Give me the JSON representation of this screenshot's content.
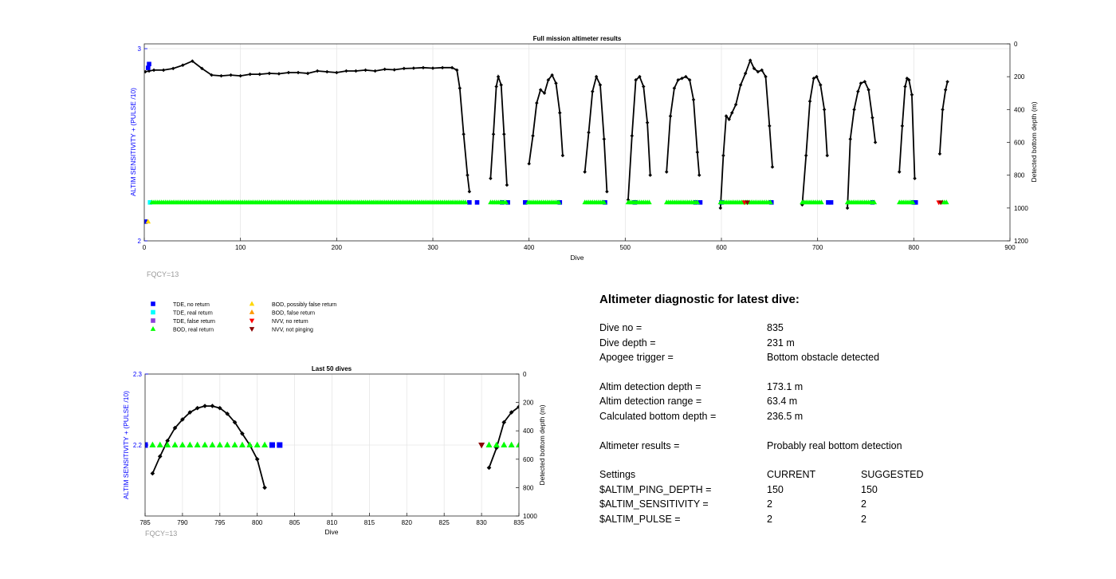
{
  "top_chart": {
    "title": "Full mission altimeter results",
    "xlabel": "Dive",
    "ylabel_left": "ALTIM SENSITIVITY + (PULSE /10)",
    "ylabel_right": "Detected bottom depth (m)",
    "footnote": "FQCY=13",
    "x_ticks": [
      "0",
      "100",
      "200",
      "300",
      "400",
      "500",
      "600",
      "700",
      "800",
      "900"
    ],
    "y_left_ticks": [
      "2",
      "3"
    ],
    "y_right_ticks": [
      "0",
      "200",
      "400",
      "600",
      "800",
      "1000",
      "1200"
    ]
  },
  "bottom_chart": {
    "title": "Last 50 dives",
    "xlabel": "Dive",
    "ylabel_left": "ALTIM SENSITIVITY + (PULSE /10)",
    "ylabel_right": "Detected bottom depth (m)",
    "footnote": "FQCY=13",
    "x_ticks": [
      "785",
      "790",
      "795",
      "800",
      "805",
      "810",
      "815",
      "820",
      "825",
      "830",
      "835"
    ],
    "y_left_ticks": [
      "2.2",
      "2.3"
    ],
    "y_right_ticks": [
      "0",
      "200",
      "400",
      "600",
      "800",
      "1000"
    ]
  },
  "legend": [
    {
      "label": "TDE, no return",
      "color": "#0000ff",
      "shape": "square"
    },
    {
      "label": "TDE, real return",
      "color": "#00ffff",
      "shape": "square"
    },
    {
      "label": "TDE, false return",
      "color": "#8b3fd9",
      "shape": "square"
    },
    {
      "label": "BOD, real return",
      "color": "#00ff00",
      "shape": "triangle-up"
    },
    {
      "label": "BOD, possibly false return",
      "color": "#ffd700",
      "shape": "triangle-up"
    },
    {
      "label": "BOD, false return",
      "color": "#ff9900",
      "shape": "triangle-up"
    },
    {
      "label": "NVV, no return",
      "color": "#ff0000",
      "shape": "triangle-down"
    },
    {
      "label": "NVV, not pinging",
      "color": "#8b0000",
      "shape": "triangle-down"
    }
  ],
  "chart_data": [
    {
      "type": "scatter",
      "title": "Full mission altimeter results",
      "xlabel": "Dive",
      "ylabel": "ALTIM SENSITIVITY + (PULSE /10)",
      "y2label": "Detected bottom depth (m)",
      "xlim": [
        0,
        900
      ],
      "ylim": [
        2,
        3.025
      ],
      "y2lim": [
        1200,
        0
      ],
      "grid": true,
      "series": [
        {
          "name": "Detected bottom depth",
          "axis": "right",
          "segments": [
            [
              [
                1,
                170
              ],
              [
                5,
                165
              ],
              [
                10,
                160
              ],
              [
                20,
                160
              ],
              [
                30,
                150
              ],
              [
                40,
                130
              ],
              [
                50,
                105
              ],
              [
                60,
                150
              ],
              [
                70,
                190
              ],
              [
                80,
                195
              ],
              [
                90,
                190
              ],
              [
                100,
                195
              ],
              [
                110,
                185
              ],
              [
                120,
                185
              ],
              [
                130,
                180
              ],
              [
                140,
                182
              ],
              [
                150,
                175
              ],
              [
                160,
                175
              ],
              [
                170,
                180
              ],
              [
                180,
                165
              ],
              [
                190,
                170
              ],
              [
                200,
                175
              ],
              [
                210,
                165
              ],
              [
                220,
                165
              ],
              [
                230,
                160
              ],
              [
                240,
                165
              ],
              [
                250,
                155
              ],
              [
                260,
                158
              ],
              [
                270,
                150
              ],
              [
                280,
                148
              ],
              [
                290,
                145
              ],
              [
                300,
                148
              ],
              [
                310,
                145
              ],
              [
                320,
                145
              ],
              [
                325,
                160
              ],
              [
                328,
                270
              ],
              [
                332,
                550
              ],
              [
                336,
                800
              ],
              [
                338,
                900
              ]
            ],
            [
              [
                360,
                820
              ],
              [
                363,
                550
              ],
              [
                366,
                260
              ],
              [
                368,
                200
              ],
              [
                371,
                250
              ],
              [
                374,
                550
              ],
              [
                377,
                860
              ]
            ],
            [
              [
                400,
                730
              ],
              [
                404,
                560
              ],
              [
                408,
                360
              ],
              [
                412,
                280
              ],
              [
                416,
                300
              ],
              [
                420,
                220
              ],
              [
                424,
                190
              ],
              [
                428,
                240
              ],
              [
                432,
                420
              ],
              [
                435,
                680
              ]
            ],
            [
              [
                458,
                780
              ],
              [
                462,
                540
              ],
              [
                466,
                290
              ],
              [
                470,
                200
              ],
              [
                474,
                250
              ],
              [
                478,
                580
              ],
              [
                481,
                900
              ]
            ],
            [
              [
                503,
                950
              ],
              [
                507,
                560
              ],
              [
                511,
                220
              ],
              [
                515,
                200
              ],
              [
                519,
                260
              ],
              [
                523,
                480
              ],
              [
                526,
                800
              ]
            ],
            [
              [
                543,
                780
              ],
              [
                547,
                440
              ],
              [
                551,
                270
              ],
              [
                555,
                220
              ],
              [
                559,
                210
              ],
              [
                563,
                200
              ],
              [
                567,
                220
              ],
              [
                571,
                340
              ],
              [
                575,
                660
              ],
              [
                577,
                800
              ]
            ],
            [
              [
                599,
                1000
              ],
              [
                602,
                680
              ],
              [
                605,
                440
              ],
              [
                608,
                460
              ],
              [
                611,
                420
              ],
              [
                615,
                370
              ],
              [
                620,
                250
              ],
              [
                625,
                180
              ],
              [
                630,
                100
              ],
              [
                634,
                150
              ],
              [
                638,
                170
              ],
              [
                642,
                160
              ],
              [
                646,
                200
              ],
              [
                650,
                500
              ],
              [
                653,
                750
              ]
            ],
            [
              [
                684,
                980
              ],
              [
                688,
                680
              ],
              [
                692,
                350
              ],
              [
                696,
                210
              ],
              [
                699,
                200
              ],
              [
                703,
                250
              ],
              [
                707,
                400
              ],
              [
                710,
                680
              ]
            ],
            [
              [
                731,
                1000
              ],
              [
                734,
                580
              ],
              [
                738,
                400
              ],
              [
                742,
                290
              ],
              [
                745,
                240
              ],
              [
                749,
                230
              ],
              [
                753,
                280
              ],
              [
                757,
                450
              ],
              [
                760,
                600
              ]
            ],
            [
              [
                785,
                780
              ],
              [
                788,
                500
              ],
              [
                791,
                260
              ],
              [
                793,
                210
              ],
              [
                795,
                220
              ],
              [
                798,
                310
              ],
              [
                801,
                820
              ]
            ],
            [
              [
                827,
                670
              ],
              [
                830,
                400
              ],
              [
                833,
                280
              ],
              [
                835,
                231
              ]
            ]
          ]
        },
        {
          "name": "TDE, no return",
          "axis": "left",
          "color": "#0000ff",
          "x": [
            1,
            4,
            5,
            338,
            346,
            372,
            378,
            396,
            432,
            479,
            510,
            573,
            578,
            600,
            652,
            711,
            714,
            757,
            800,
            802
          ],
          "y": [
            2.1,
            2.9,
            2.92,
            2.2,
            2.2,
            2.2,
            2.2,
            2.2,
            2.2,
            2.2,
            2.2,
            2.2,
            2.2,
            2.2,
            2.2,
            2.2,
            2.2,
            2.2,
            2.2,
            2.2
          ]
        },
        {
          "name": "TDE, real return",
          "axis": "left",
          "color": "#00ffff",
          "x": [
            6
          ],
          "y": [
            2.2
          ]
        },
        {
          "name": "BOD, real return",
          "axis": "left",
          "color": "#00ff00",
          "x_range": [
            [
              8,
              335
            ],
            [
              360,
              377
            ],
            [
              399,
              432
            ],
            [
              458,
              479
            ],
            [
              503,
              525
            ],
            [
              543,
              575
            ],
            [
              599,
              652
            ],
            [
              684,
              705
            ],
            [
              731,
              760
            ],
            [
              785,
              800
            ],
            [
              830,
              835
            ]
          ],
          "y": 2.2
        },
        {
          "name": "BOD, possibly false return",
          "axis": "left",
          "color": "#ffd700",
          "x": [
            4
          ],
          "y": [
            2.1
          ]
        },
        {
          "name": "NVV, no return",
          "axis": "left",
          "color": "#ff0000",
          "x": [
            624,
            826
          ],
          "y": [
            2.2,
            2.2
          ]
        },
        {
          "name": "NVV, not pinging",
          "axis": "left",
          "color": "#8b0000",
          "x": [
            627,
            828
          ],
          "y": [
            2.2,
            2.2
          ]
        }
      ]
    },
    {
      "type": "scatter",
      "title": "Last 50 dives",
      "xlabel": "Dive",
      "ylabel": "ALTIM SENSITIVITY + (PULSE /10)",
      "y2label": "Detected bottom depth (m)",
      "xlim": [
        785,
        835
      ],
      "ylim": [
        2.1,
        2.3
      ],
      "y2lim": [
        1000,
        0
      ],
      "grid": true,
      "series": [
        {
          "name": "Detected bottom depth",
          "axis": "right",
          "segments": [
            [
              [
                786,
                700
              ],
              [
                787,
                580
              ],
              [
                788,
                470
              ],
              [
                789,
                380
              ],
              [
                790,
                320
              ],
              [
                791,
                270
              ],
              [
                792,
                240
              ],
              [
                793,
                225
              ],
              [
                794,
                225
              ],
              [
                795,
                240
              ],
              [
                796,
                280
              ],
              [
                797,
                340
              ],
              [
                798,
                420
              ],
              [
                799,
                500
              ],
              [
                800,
                600
              ],
              [
                801,
                800
              ]
            ],
            [
              [
                831,
                660
              ],
              [
                832,
                520
              ],
              [
                833,
                340
              ],
              [
                834,
                270
              ],
              [
                835,
                231
              ]
            ]
          ]
        },
        {
          "name": "TDE, no return",
          "axis": "left",
          "color": "#0000ff",
          "x": [
            785,
            802,
            803
          ],
          "y": [
            2.2,
            2.2,
            2.2
          ]
        },
        {
          "name": "BOD, real return",
          "axis": "left",
          "color": "#00ff00",
          "x": [
            786,
            787,
            788,
            789,
            790,
            791,
            792,
            793,
            794,
            795,
            796,
            797,
            798,
            799,
            800,
            801,
            831,
            832,
            833,
            834,
            835
          ],
          "y": [
            2.2,
            2.2,
            2.2,
            2.2,
            2.2,
            2.2,
            2.2,
            2.2,
            2.2,
            2.2,
            2.2,
            2.2,
            2.2,
            2.2,
            2.2,
            2.2,
            2.2,
            2.2,
            2.2,
            2.2,
            2.2
          ]
        },
        {
          "name": "NVV, not pinging",
          "axis": "left",
          "color": "#8b0000",
          "x": [
            830
          ],
          "y": [
            2.2
          ]
        }
      ]
    }
  ],
  "diagnostic": {
    "title": "Altimeter diagnostic for latest dive:",
    "dive_no": {
      "label": "Dive no =",
      "value": "835"
    },
    "dive_depth": {
      "label": "Dive depth =",
      "value": "231 m"
    },
    "apogee_trigger": {
      "label": "Apogee trigger =",
      "value": "Bottom obstacle detected"
    },
    "altim_detection_depth": {
      "label": "Altim detection depth =",
      "value": "173.1 m"
    },
    "altim_detection_range": {
      "label": "Altim detection range =",
      "value": "63.4 m"
    },
    "calculated_bottom_depth": {
      "label": "Calculated bottom depth =",
      "value": "236.5 m"
    },
    "altimeter_results": {
      "label": "Altimeter results =",
      "value": "Probably real bottom detection"
    },
    "settings_header": {
      "label": "Settings",
      "current": "CURRENT",
      "suggested": "SUGGESTED"
    },
    "ping_depth": {
      "label": "$ALTIM_PING_DEPTH =",
      "current": "150",
      "suggested": "150"
    },
    "sensitivity": {
      "label": "$ALTIM_SENSITIVITY =",
      "current": "2",
      "suggested": "2"
    },
    "pulse": {
      "label": "$ALTIM_PULSE =",
      "current": "2",
      "suggested": "2"
    }
  }
}
